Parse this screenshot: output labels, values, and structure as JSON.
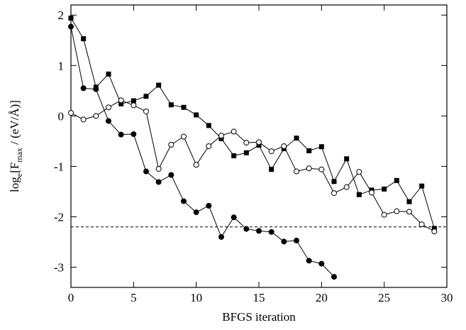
{
  "chart_data": {
    "type": "line",
    "x_label": "BFGS iteration",
    "y_label": {
      "parts": [
        "log",
        "e",
        "[F",
        "max",
        " / (eV/Å)]"
      ]
    },
    "x": [
      0,
      1,
      2,
      3,
      4,
      5,
      6,
      7,
      8,
      9,
      10,
      11,
      12,
      13,
      14,
      15,
      16,
      17,
      18,
      19,
      20,
      21,
      22,
      23,
      24,
      25,
      26,
      27,
      28,
      29
    ],
    "series": [
      {
        "marker": "square-filled",
        "color": "#000000",
        "values": [
          1.94,
          1.53,
          0.57,
          0.83,
          0.24,
          0.3,
          0.39,
          0.61,
          0.22,
          0.17,
          0.02,
          -0.19,
          -0.45,
          -0.79,
          -0.73,
          -0.58,
          -1.06,
          -0.65,
          -0.44,
          -0.69,
          -0.61,
          -1.3,
          -0.85,
          -1.56,
          -1.47,
          -1.45,
          -1.28,
          -1.7,
          -1.39,
          -2.23
        ]
      },
      {
        "marker": "circle-open",
        "color": "#000000",
        "values": [
          0.06,
          -0.07,
          0.0,
          0.17,
          0.31,
          0.21,
          0.09,
          -1.05,
          -0.57,
          -0.41,
          -0.97,
          -0.6,
          -0.39,
          -0.31,
          -0.53,
          -0.52,
          -0.7,
          -0.6,
          -1.1,
          -1.04,
          -1.06,
          -1.53,
          -1.41,
          -1.11,
          -1.52,
          -1.96,
          -1.89,
          -1.9,
          -2.15,
          -2.29
        ]
      },
      {
        "marker": "circle-filled",
        "color": "#000000",
        "values": [
          1.77,
          0.55,
          0.53,
          -0.1,
          -0.37,
          -0.36,
          -1.1,
          -1.31,
          -1.17,
          -1.69,
          -1.91,
          -1.78,
          -2.4,
          -2.01,
          -2.24,
          -2.28,
          -2.3,
          -2.49,
          -2.47,
          -2.87,
          -2.93,
          -3.19,
          null,
          null,
          null,
          null,
          null,
          null,
          null,
          null
        ]
      }
    ],
    "hline": -2.2,
    "xlim": [
      0,
      30
    ],
    "ylim": [
      -3.4,
      2.2
    ],
    "xticks": [
      0,
      5,
      10,
      15,
      20,
      25,
      30
    ],
    "yticks": [
      -3,
      -2,
      -1,
      0,
      1,
      2
    ]
  }
}
